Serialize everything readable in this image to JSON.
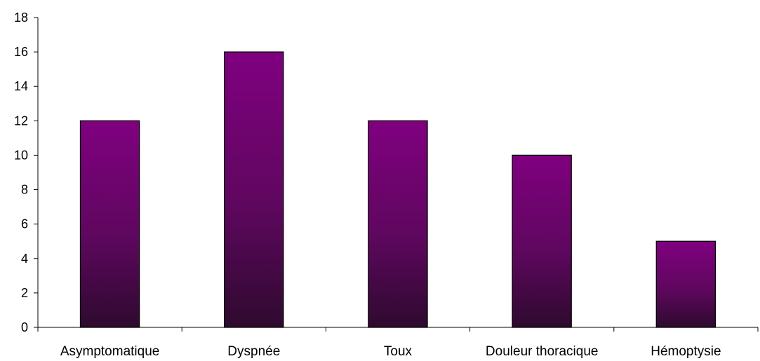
{
  "chart_data": {
    "type": "bar",
    "categories": [
      "Asymptomatique",
      "Dyspnée",
      "Toux",
      "Douleur thoracique",
      "Hémoptysie"
    ],
    "values": [
      12,
      16,
      12,
      10,
      5
    ],
    "title": "",
    "xlabel": "",
    "ylabel": "",
    "ylim": [
      0,
      18
    ],
    "yticks": [
      0,
      2,
      4,
      6,
      8,
      10,
      12,
      14,
      16,
      18
    ],
    "grid": false,
    "legend": "none",
    "colors": {
      "bar_top": "#800080",
      "bar_bottom": "#2e0a2e",
      "bar_outline": "#000000",
      "axis": "#000000"
    }
  }
}
